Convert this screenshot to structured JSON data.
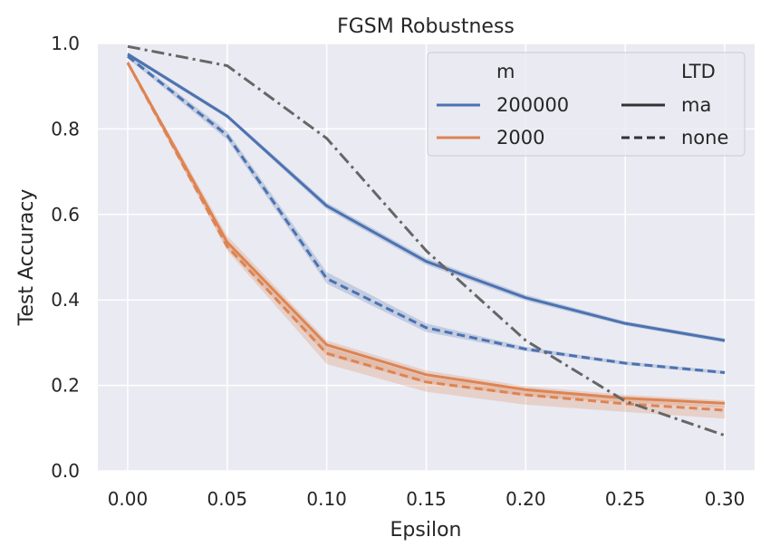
{
  "chart_data": {
    "type": "line",
    "title": "FGSM Robustness",
    "xlabel": "Epsilon",
    "ylabel": "Test Accuracy",
    "xlim": [
      -0.015,
      0.315
    ],
    "ylim": [
      0.0,
      1.0
    ],
    "x_ticks": [
      "0.00",
      "0.05",
      "0.10",
      "0.15",
      "0.20",
      "0.25",
      "0.30"
    ],
    "y_ticks": [
      "0.0",
      "0.2",
      "0.4",
      "0.6",
      "0.8",
      "1.0"
    ],
    "grid": true,
    "legend_placement": "top-right",
    "legend": {
      "hue_title": "m",
      "style_title": "LTD",
      "hue_entries": [
        {
          "label": "200000",
          "color": "#4c72b0"
        },
        {
          "label": "2000",
          "color": "#dd8452"
        }
      ],
      "style_entries": [
        {
          "label": "ma",
          "dash": "solid"
        },
        {
          "label": "none",
          "dash": "dashed"
        }
      ]
    },
    "x": [
      0.0,
      0.05,
      0.1,
      0.15,
      0.2,
      0.25,
      0.3
    ],
    "series": [
      {
        "m": "200000",
        "ltd": "ma",
        "color": "#4c72b0",
        "dash": "solid",
        "values": [
          0.975,
          0.83,
          0.62,
          0.49,
          0.405,
          0.345,
          0.305
        ],
        "lower": [
          0.97,
          0.825,
          0.612,
          0.482,
          0.398,
          0.34,
          0.3
        ],
        "upper": [
          0.98,
          0.835,
          0.628,
          0.498,
          0.412,
          0.35,
          0.31
        ]
      },
      {
        "m": "200000",
        "ltd": "none",
        "color": "#4c72b0",
        "dash": "dashed",
        "values": [
          0.97,
          0.785,
          0.45,
          0.335,
          0.285,
          0.252,
          0.23
        ],
        "lower": [
          0.965,
          0.775,
          0.438,
          0.325,
          0.28,
          0.248,
          0.226
        ],
        "upper": [
          0.975,
          0.795,
          0.465,
          0.345,
          0.29,
          0.256,
          0.234
        ]
      },
      {
        "m": "2000",
        "ltd": "ma",
        "color": "#dd8452",
        "dash": "solid",
        "values": [
          0.955,
          0.535,
          0.295,
          0.225,
          0.19,
          0.17,
          0.158
        ],
        "lower": [
          0.95,
          0.52,
          0.27,
          0.205,
          0.175,
          0.16,
          0.148
        ],
        "upper": [
          0.96,
          0.55,
          0.305,
          0.235,
          0.198,
          0.178,
          0.165
        ]
      },
      {
        "m": "2000",
        "ltd": "none",
        "color": "#dd8452",
        "dash": "dashed",
        "values": [
          0.955,
          0.525,
          0.275,
          0.208,
          0.178,
          0.157,
          0.142
        ],
        "lower": [
          0.95,
          0.515,
          0.25,
          0.185,
          0.155,
          0.138,
          0.122
        ],
        "upper": [
          0.96,
          0.535,
          0.29,
          0.22,
          0.188,
          0.168,
          0.152
        ]
      },
      {
        "m": "",
        "ltd": "",
        "color": "#666666",
        "dash": "dashdot",
        "values": [
          0.993,
          0.948,
          0.778,
          0.515,
          0.305,
          0.163,
          0.083
        ]
      }
    ]
  }
}
